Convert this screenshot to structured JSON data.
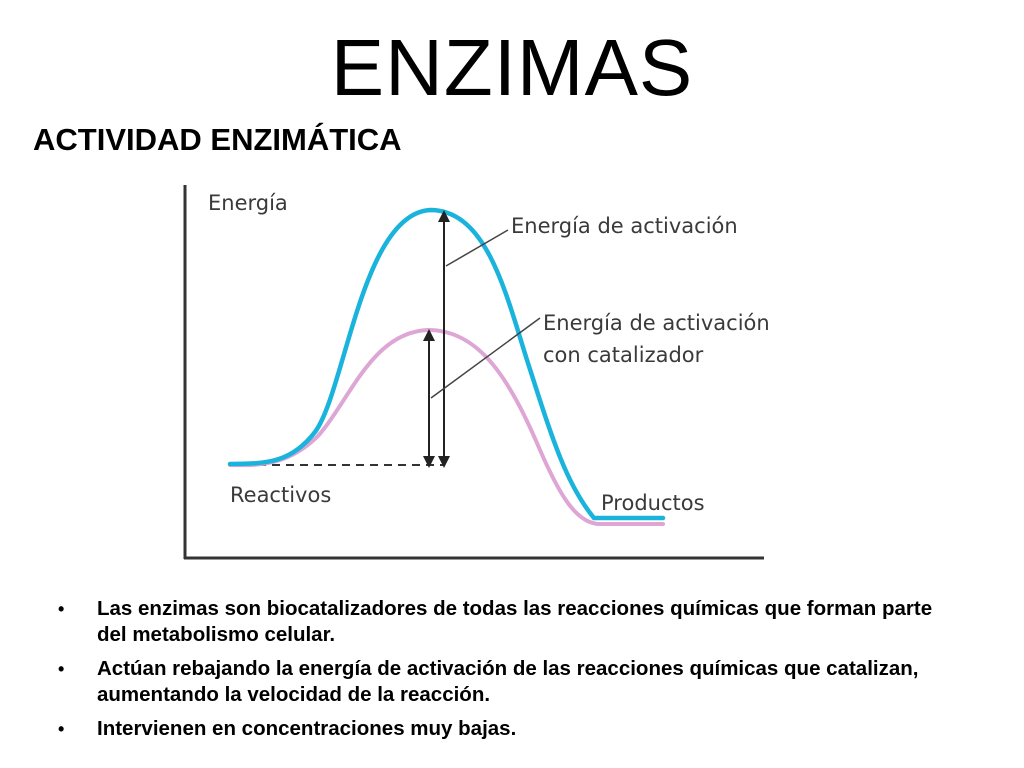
{
  "slide": {
    "title": "ENZIMAS",
    "subtitle": "ACTIVIDAD ENZIMÁTICA"
  },
  "diagram": {
    "y_axis_label": "Energía",
    "label_activation": "Energía de activación",
    "label_catalyst_line1": "Energía de activación",
    "label_catalyst_line2": "con catalizador",
    "label_reactants": "Reactivos",
    "label_products": "Productos",
    "colors": {
      "uncatalyzed_curve": "#1ab3dc",
      "catalyzed_curve": "#dda6d4",
      "axes": "#333333"
    },
    "levels": {
      "reactants": 0,
      "products": -0.24,
      "peak_uncatalyzed": 1.0,
      "peak_catalyzed": 0.53
    }
  },
  "bullets": [
    {
      "marker": "•",
      "text": "Las enzimas son biocatalizadores de todas las reacciones químicas que forman parte del metabolismo celular."
    },
    {
      "marker": "•",
      "text": "Actúan rebajando la energía de activación de las reacciones químicas que catalizan, aumentando la velocidad de la reacción."
    },
    {
      "marker": "•",
      "text": "Intervienen en concentraciones muy bajas."
    }
  ]
}
